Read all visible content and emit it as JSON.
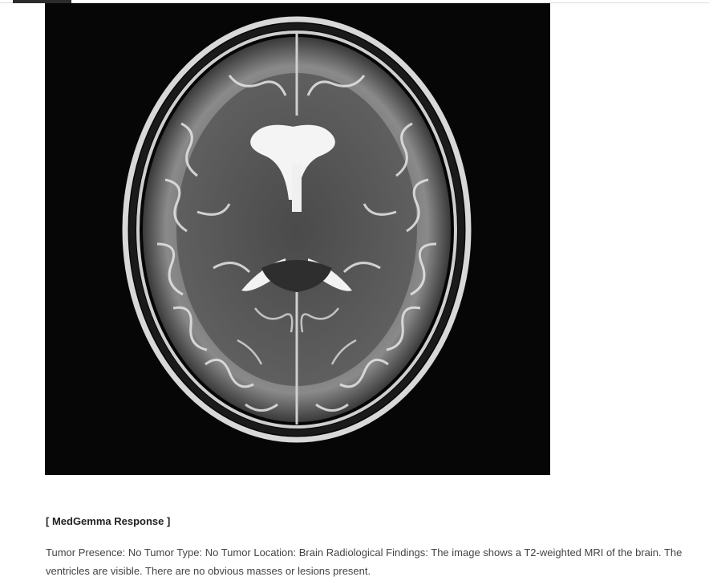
{
  "image": {
    "description_icon": "brain-mri-image"
  },
  "response": {
    "heading": "[ MedGemma Response ]",
    "body": "Tumor Presence: No Tumor Type: No Tumor Location: Brain Radiological Findings: The image shows a T2-weighted MRI of the brain. The ventricles are visible. There are no obvious masses or lesions present."
  },
  "colors": {
    "page_background": "#ffffff",
    "image_background": "#060606",
    "heading_text": "#222222",
    "body_text": "#444444"
  }
}
